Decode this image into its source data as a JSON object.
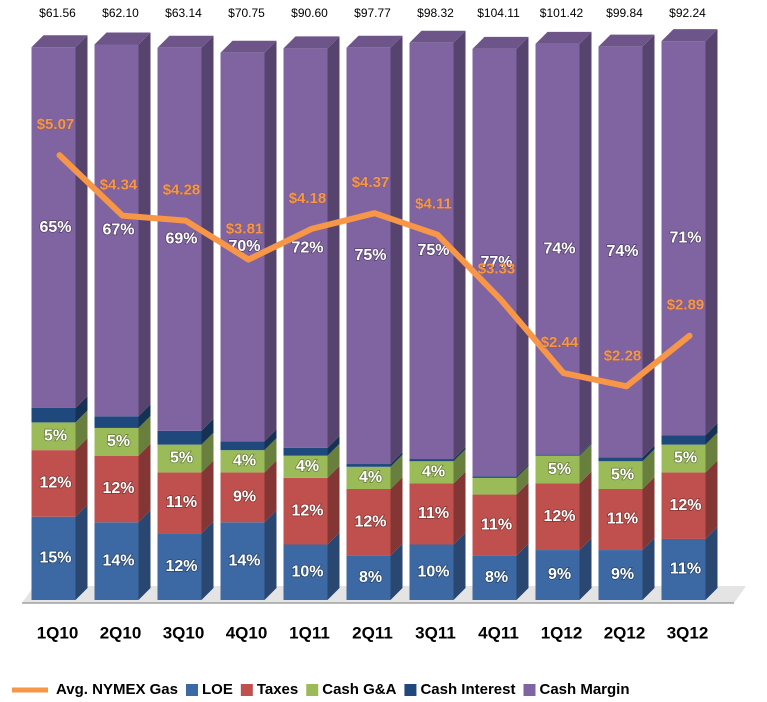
{
  "chart_data": {
    "type": "stacked_bar_line",
    "categories": [
      "1Q10",
      "2Q10",
      "3Q10",
      "4Q10",
      "1Q11",
      "2Q11",
      "3Q11",
      "4Q11",
      "1Q12",
      "2Q12",
      "3Q12"
    ],
    "top_labels": {
      "values": [
        61.56,
        62.1,
        63.14,
        70.75,
        90.6,
        97.77,
        98.32,
        104.11,
        101.42,
        99.84,
        92.24
      ],
      "value_labels": [
        "$61.56",
        "$62.10",
        "$63.14",
        "$70.75",
        "$90.60",
        "$97.77",
        "$98.32",
        "$104.11",
        "$101.42",
        "$99.84",
        "$92.24"
      ]
    },
    "ylim": [
      0,
      100
    ],
    "y2lim": [
      -0.3,
      6.4
    ],
    "series": [
      {
        "name": "LOE",
        "color": "#3c69a4",
        "values": [
          15,
          14,
          12,
          14,
          10,
          8,
          10,
          8,
          9,
          9,
          11
        ],
        "value_labels": [
          "15%",
          "14%",
          "12%",
          "14%",
          "10%",
          "8%",
          "10%",
          "8%",
          "9%",
          "9%",
          "11%"
        ]
      },
      {
        "name": "Taxes",
        "color": "#c0504d",
        "values": [
          12,
          12,
          11,
          9,
          12,
          12,
          11,
          11,
          12,
          11,
          12
        ],
        "value_labels": [
          "12%",
          "12%",
          "11%",
          "9%",
          "12%",
          "12%",
          "11%",
          "11%",
          "12%",
          "11%",
          "12%"
        ]
      },
      {
        "name": "Cash G&A",
        "color": "#9bbb59",
        "values": [
          5,
          5,
          5,
          4,
          4,
          4,
          4,
          3,
          5,
          5,
          5
        ],
        "value_labels": [
          "5%",
          "5%",
          "5%",
          "4%",
          "4%",
          "4%",
          "4%",
          "3%",
          "5%",
          "5%",
          "5%"
        ]
      },
      {
        "name": "Cash Interest",
        "color": "#1f497d",
        "values": [
          2.6,
          2.1,
          2.5,
          1.6,
          1.4,
          0.5,
          0.4,
          0.3,
          0.2,
          0.7,
          1.7
        ],
        "value_labels": [
          "2.6%",
          "2.1%",
          "2.5%",
          "1.6%",
          "1.4%",
          "0.5%",
          "0.4%",
          "0.3%",
          "0.2%",
          "0.7%",
          "1.7%"
        ]
      },
      {
        "name": "Cash Margin",
        "color": "#8064a2",
        "values": [
          65,
          67,
          69,
          70,
          72,
          75,
          75,
          77,
          74,
          74,
          71
        ],
        "value_labels": [
          "65%",
          "67%",
          "69%",
          "70%",
          "72%",
          "75%",
          "75%",
          "77%",
          "74%",
          "74%",
          "71%"
        ]
      },
      {
        "name": "Avg. NYMEX Gas",
        "color": "#f79646",
        "axis": "y2",
        "values": [
          5.07,
          4.34,
          4.28,
          3.81,
          4.18,
          4.37,
          4.11,
          3.33,
          2.44,
          2.28,
          2.89
        ],
        "value_labels": [
          "$5.07",
          "$4.34",
          "$4.28",
          "$3.81",
          "$4.18",
          "$4.37",
          "$4.11",
          "$3.33",
          "$2.44",
          "$2.28",
          "$2.89"
        ]
      }
    ]
  }
}
